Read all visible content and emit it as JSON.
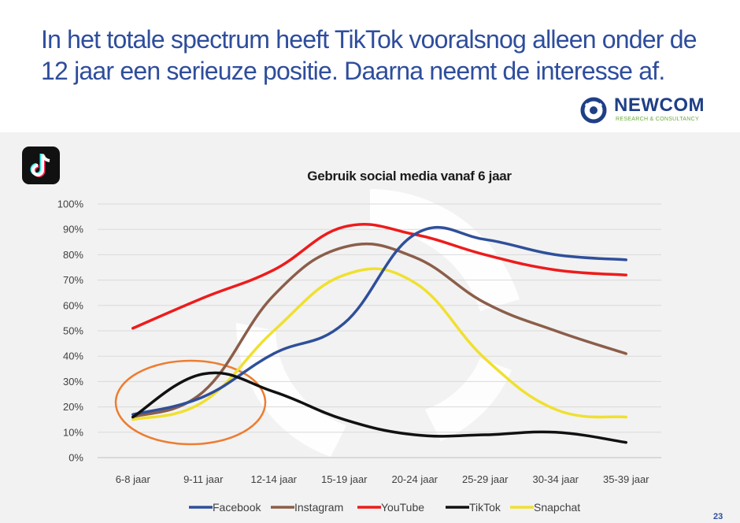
{
  "slide": {
    "title": "In het totale spectrum heeft TikTok vooralsnog alleen onder de 12 jaar een serieuze positie. Daarna neemt de interesse af.",
    "logo_name": "NEWCOM",
    "logo_tagline": "RESEARCH & CONSULTANCY",
    "page_number": "23",
    "app_icon": "tiktok-icon",
    "colors": {
      "title": "#2e4d9c",
      "panel_background": "#f2f2f2",
      "highlight_ellipse": "#ed7d31"
    }
  },
  "chart_data": {
    "type": "line",
    "title": "Gebruik social media vanaf 6 jaar",
    "xlabel": "",
    "ylabel": "",
    "categories": [
      "6-8 jaar",
      "9-11 jaar",
      "12-14 jaar",
      "15-19 jaar",
      "20-24 jaar",
      "25-29 jaar",
      "30-34 jaar",
      "35-39 jaar"
    ],
    "yticks": [
      "0%",
      "10%",
      "20%",
      "30%",
      "40%",
      "50%",
      "60%",
      "70%",
      "80%",
      "90%",
      "100%"
    ],
    "ylim": [
      0,
      100
    ],
    "grid": true,
    "legend_position": "bottom",
    "series": [
      {
        "name": "Facebook",
        "color": "#2f4f9a",
        "values": [
          17,
          24,
          41,
          53,
          88,
          86,
          80,
          78
        ]
      },
      {
        "name": "Instagram",
        "color": "#8b5e4a",
        "values": [
          16,
          26,
          64,
          83,
          79,
          61,
          50,
          41
        ]
      },
      {
        "name": "YouTube",
        "color": "#ee1b1b",
        "values": [
          51,
          63,
          74,
          91,
          88,
          80,
          74,
          72
        ]
      },
      {
        "name": "TikTok",
        "color": "#111111",
        "values": [
          16,
          33,
          26,
          15,
          9,
          9,
          10,
          6
        ]
      },
      {
        "name": "Snapchat",
        "color": "#f0e030",
        "values": [
          15,
          22,
          50,
          72,
          69,
          39,
          19,
          16
        ]
      }
    ]
  }
}
